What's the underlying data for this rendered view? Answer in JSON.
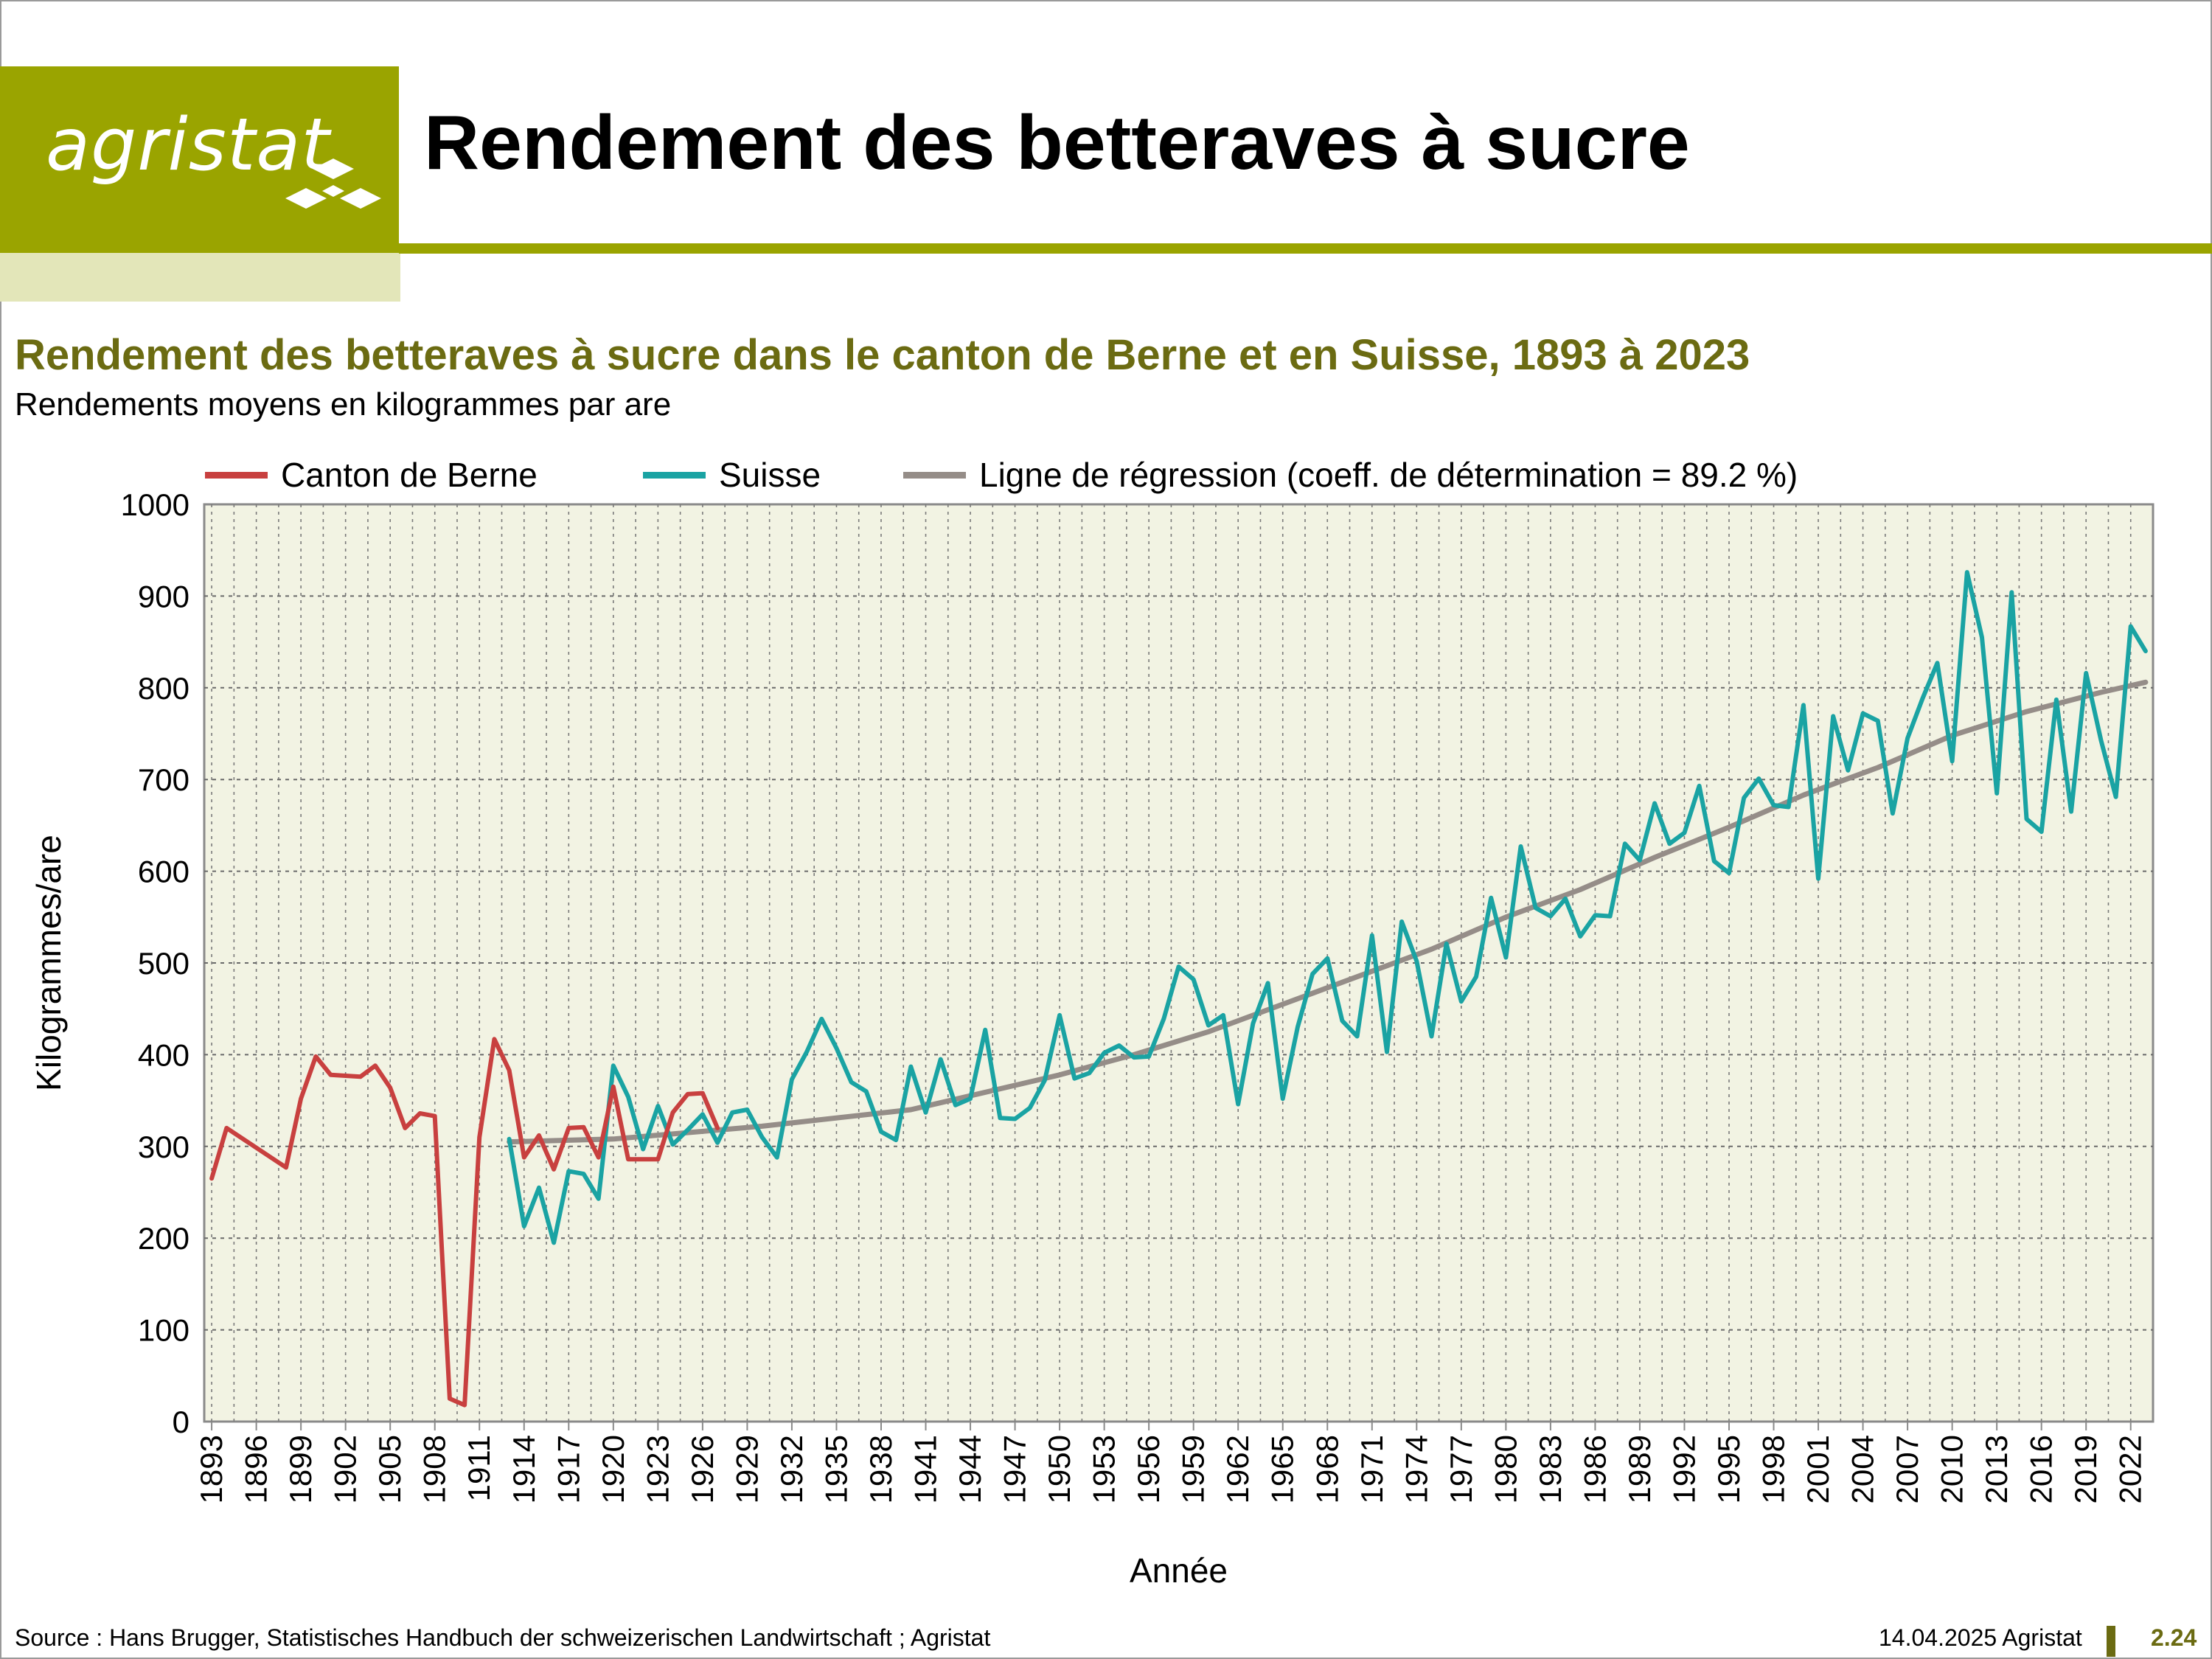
{
  "header": {
    "logo_text": "agristat",
    "page_title": "Rendement des betteraves à sucre"
  },
  "colors": {
    "brand": "#9aa400",
    "brand_light": "#e3e6b9",
    "title_olive": "#6b6b12",
    "plot_bg": "#f2f3e3",
    "berne": "#c8403f",
    "suisse": "#1aa3a3",
    "regression": "#958d88"
  },
  "chart_data": {
    "type": "line",
    "title": "Rendement des betteraves à sucre dans le canton de Berne et en Suisse, 1893 à 2023",
    "subtitle": "Rendements moyens en kilogrammes par are",
    "xlabel": "Année",
    "ylabel": "Kilogrammes/are",
    "ylim": [
      0,
      1000
    ],
    "yticks": [
      0,
      100,
      200,
      300,
      400,
      500,
      600,
      700,
      800,
      900,
      1000
    ],
    "xlim": [
      1893,
      2023
    ],
    "xticks": [
      1893,
      1896,
      1899,
      1902,
      1905,
      1908,
      1911,
      1914,
      1917,
      1920,
      1923,
      1926,
      1929,
      1932,
      1935,
      1938,
      1941,
      1944,
      1947,
      1950,
      1953,
      1956,
      1959,
      1962,
      1965,
      1968,
      1971,
      1974,
      1977,
      1980,
      1983,
      1986,
      1989,
      1992,
      1995,
      1998,
      2001,
      2004,
      2007,
      2010,
      2013,
      2016,
      2019,
      2022
    ],
    "grid": true,
    "legend_position": "top",
    "series": [
      {
        "name": "Canton de Berne",
        "color": "#c8403f",
        "x": [
          1893,
          1894,
          1898,
          1899,
          1900,
          1901,
          1902,
          1903,
          1904,
          1905,
          1906,
          1907,
          1908,
          1909,
          1910,
          1911,
          1912,
          1913,
          1914,
          1915,
          1916,
          1917,
          1918,
          1919,
          1920,
          1921,
          1922,
          1923,
          1924,
          1925,
          1926,
          1927
        ],
        "y": [
          265,
          320,
          277,
          352,
          398,
          378,
          377,
          376,
          388,
          364,
          320,
          336,
          333,
          25,
          18,
          310,
          417,
          383,
          288,
          312,
          275,
          320,
          321,
          288,
          365,
          286,
          286,
          286,
          337,
          357,
          358,
          320
        ]
      },
      {
        "name": "Suisse",
        "color": "#1aa3a3",
        "x": [
          1913,
          1914,
          1915,
          1916,
          1917,
          1918,
          1919,
          1920,
          1921,
          1922,
          1923,
          1924,
          1925,
          1926,
          1927,
          1928,
          1929,
          1930,
          1931,
          1932,
          1933,
          1934,
          1935,
          1936,
          1937,
          1938,
          1939,
          1940,
          1941,
          1942,
          1943,
          1944,
          1945,
          1946,
          1947,
          1948,
          1949,
          1950,
          1951,
          1952,
          1953,
          1954,
          1955,
          1956,
          1957,
          1958,
          1959,
          1960,
          1961,
          1962,
          1963,
          1964,
          1965,
          1966,
          1967,
          1968,
          1969,
          1970,
          1971,
          1972,
          1973,
          1974,
          1975,
          1976,
          1977,
          1978,
          1979,
          1980,
          1981,
          1982,
          1983,
          1984,
          1985,
          1986,
          1987,
          1988,
          1989,
          1990,
          1991,
          1992,
          1993,
          1994,
          1995,
          1996,
          1997,
          1998,
          1999,
          2000,
          2001,
          2002,
          2003,
          2004,
          2005,
          2006,
          2007,
          2008,
          2009,
          2010,
          2011,
          2012,
          2013,
          2014,
          2015,
          2016,
          2017,
          2018,
          2019,
          2020,
          2021,
          2022,
          2023
        ],
        "y": [
          308,
          213,
          255,
          195,
          273,
          270,
          243,
          388,
          354,
          297,
          344,
          302,
          318,
          335,
          304,
          337,
          340,
          310,
          288,
          373,
          403,
          439,
          407,
          370,
          360,
          316,
          307,
          387,
          337,
          395,
          345,
          352,
          427,
          331,
          330,
          342,
          372,
          443,
          374,
          380,
          402,
          410,
          397,
          398,
          439,
          496,
          482,
          432,
          443,
          346,
          434,
          478,
          352,
          430,
          488,
          505,
          437,
          420,
          530,
          403,
          545,
          502,
          420,
          521,
          458,
          485,
          571,
          506,
          627,
          560,
          551,
          570,
          529,
          552,
          551,
          630,
          612,
          674,
          630,
          642,
          693,
          611,
          598,
          680,
          701,
          672,
          670,
          781,
          592,
          769,
          710,
          772,
          764,
          663,
          745,
          788,
          827,
          720,
          926,
          855,
          685,
          904,
          657,
          643,
          787,
          665,
          816,
          743,
          681,
          867,
          840
        ]
      },
      {
        "name": "Ligne de régression (coeff. de détermination = 89.2 %)",
        "color": "#958d88",
        "x": [
          1913,
          1920,
          1930,
          1940,
          1950,
          1955,
          1960,
          1965,
          1970,
          1975,
          1980,
          1985,
          1990,
          1995,
          2000,
          2005,
          2010,
          2015,
          2020,
          2023
        ],
        "y": [
          305,
          308,
          322,
          340,
          378,
          400,
          425,
          455,
          485,
          515,
          550,
          580,
          615,
          648,
          683,
          713,
          748,
          774,
          795,
          806
        ]
      }
    ]
  },
  "footer": {
    "source": "Source : Hans Brugger, Statistisches Handbuch der schweizerischen Landwirtschaft ; Agristat",
    "date": "14.04.2025 Agristat",
    "page_number": "2.24"
  }
}
